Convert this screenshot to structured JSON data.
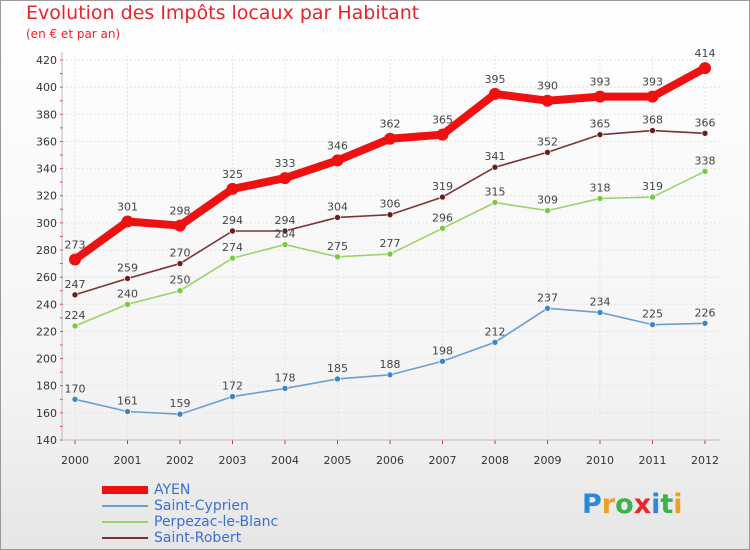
{
  "title": "Evolution des Impôts locaux par Habitant",
  "subtitle": "(en € et par an)",
  "logo": {
    "text": "Proxiti",
    "letters": [
      {
        "ch": "P",
        "color": "#2b8ad8"
      },
      {
        "ch": "r",
        "color": "#f0a020"
      },
      {
        "ch": "o",
        "color": "#3bb24a"
      },
      {
        "ch": "x",
        "color": "#e8282a"
      },
      {
        "ch": "i",
        "color": "#2b8ad8"
      },
      {
        "ch": "t",
        "color": "#3bb24a"
      },
      {
        "ch": "i",
        "color": "#f0a020"
      }
    ]
  },
  "chart_data": {
    "type": "line",
    "title": "Evolution des Impôts locaux par Habitant",
    "subtitle": "(en € et par an)",
    "x": [
      "2000",
      "2001",
      "2002",
      "2003",
      "2004",
      "2005",
      "2006",
      "2007",
      "2008",
      "2009",
      "2010",
      "2011",
      "2012"
    ],
    "ylim": [
      140,
      420
    ],
    "yticks": [
      140,
      160,
      180,
      200,
      220,
      240,
      260,
      280,
      300,
      320,
      340,
      360,
      380,
      400,
      420
    ],
    "grid": true,
    "legend_position": "bottom-left",
    "series": [
      {
        "name": "AYEN",
        "color": "#ee1111",
        "style": "thick",
        "values": [
          273,
          301,
          298,
          325,
          333,
          346,
          362,
          365,
          395,
          390,
          393,
          393,
          414
        ]
      },
      {
        "name": "Saint-Cyprien",
        "color": "#6a9fd0",
        "marker": "#3d86c6",
        "style": "thin",
        "values": [
          170,
          161,
          159,
          172,
          178,
          185,
          188,
          198,
          212,
          237,
          234,
          225,
          226
        ]
      },
      {
        "name": "Perpezac-le-Blanc",
        "color": "#99d36a",
        "marker": "#77c944",
        "style": "thin",
        "values": [
          224,
          240,
          250,
          274,
          284,
          275,
          277,
          296,
          315,
          309,
          318,
          319,
          338
        ]
      },
      {
        "name": "Saint-Robert",
        "color": "#7a3333",
        "marker": "#6b1e1e",
        "style": "thin",
        "values": [
          247,
          259,
          270,
          294,
          294,
          304,
          306,
          319,
          341,
          352,
          365,
          368,
          366
        ]
      }
    ]
  }
}
